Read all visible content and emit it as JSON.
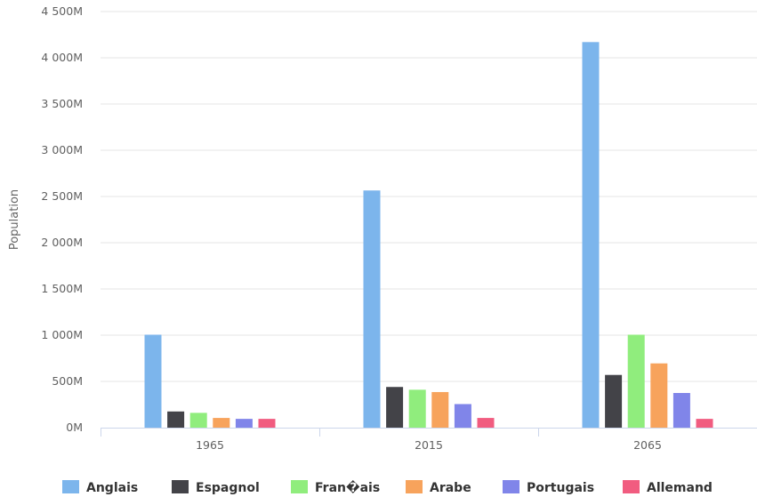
{
  "chart_data": {
    "type": "bar",
    "categories": [
      "1965",
      "2015",
      "2065"
    ],
    "series": [
      {
        "name": "Anglais",
        "color": "#7cb5ec",
        "values": [
          1005,
          2565,
          4170
        ]
      },
      {
        "name": "Espagnol",
        "color": "#434348",
        "values": [
          175,
          440,
          570
        ]
      },
      {
        "name": "Fran�ais",
        "color": "#90ed7d",
        "values": [
          160,
          410,
          1005
        ]
      },
      {
        "name": "Arabe",
        "color": "#f7a35c",
        "values": [
          105,
          385,
          695
        ]
      },
      {
        "name": "Portugais",
        "color": "#8085e9",
        "values": [
          95,
          255,
          375
        ]
      },
      {
        "name": "Allemand",
        "color": "#f15c80",
        "values": [
          95,
          105,
          95
        ]
      }
    ],
    "ylabel": "Population",
    "ylim": [
      0,
      4500
    ],
    "yticks": [
      {
        "value": 0,
        "label": "0M"
      },
      {
        "value": 500,
        "label": "500M"
      },
      {
        "value": 1000,
        "label": "1 000M"
      },
      {
        "value": 1500,
        "label": "1 500M"
      },
      {
        "value": 2000,
        "label": "2 000M"
      },
      {
        "value": 2500,
        "label": "2 500M"
      },
      {
        "value": 3000,
        "label": "3 000M"
      },
      {
        "value": 3500,
        "label": "3 500M"
      },
      {
        "value": 4000,
        "label": "4 000M"
      },
      {
        "value": 4500,
        "label": "4 500M"
      }
    ],
    "grid": true,
    "legend_position": "bottom"
  }
}
